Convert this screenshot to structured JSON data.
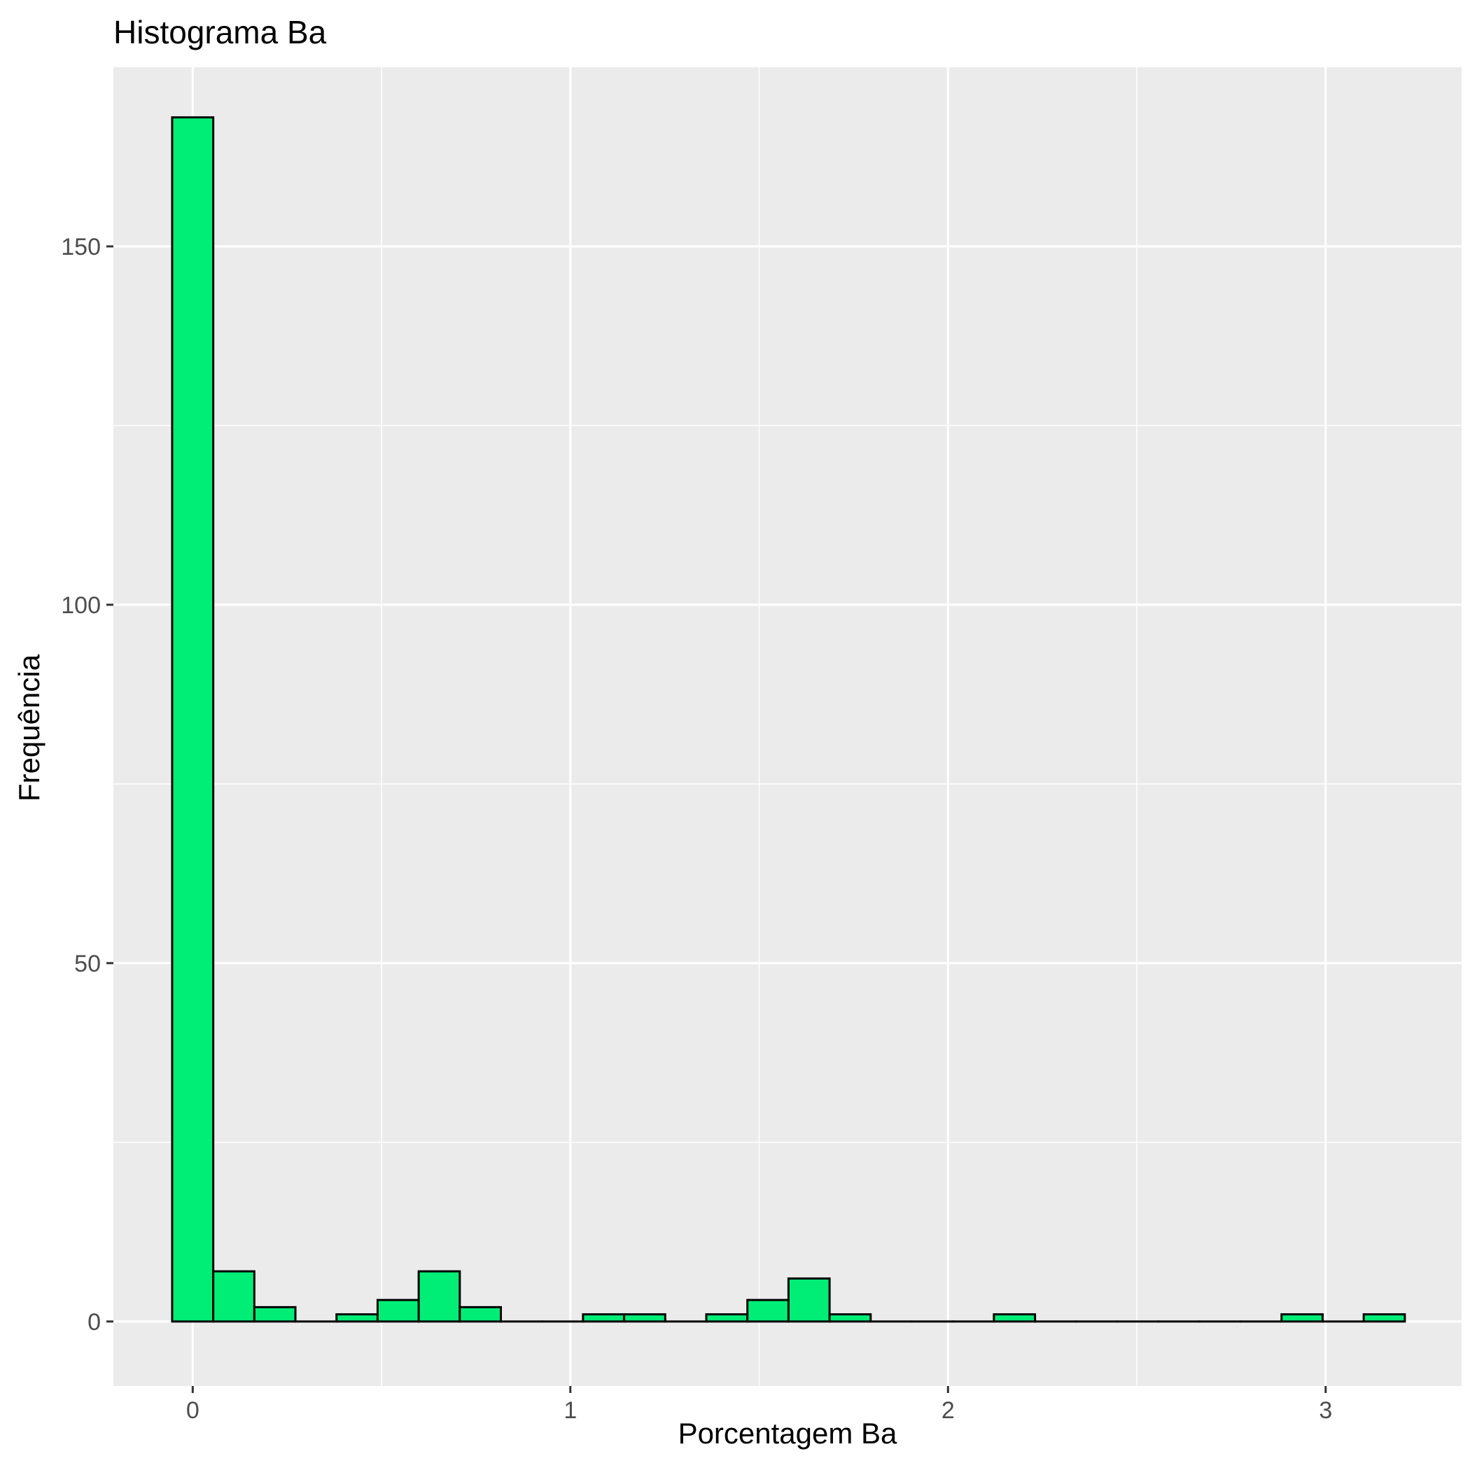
{
  "chart_data": {
    "type": "bar",
    "title": "Histograma  Ba",
    "xlabel": "Porcentagem Ba",
    "ylabel": "Frequência",
    "xlim": [
      -0.21,
      3.36
    ],
    "ylim": [
      -9,
      175
    ],
    "x_ticks": [
      0,
      1,
      2,
      3
    ],
    "x_tick_labels": [
      "0",
      "1",
      "2",
      "3"
    ],
    "y_ticks": [
      0,
      50,
      100,
      150
    ],
    "y_tick_labels": [
      "0",
      "50",
      "100",
      "150"
    ],
    "grid": true,
    "bin_width": 0.1088,
    "bins": [
      {
        "start": -0.0544,
        "end": 0.0544,
        "count": 168
      },
      {
        "start": 0.0544,
        "end": 0.1632,
        "count": 7
      },
      {
        "start": 0.1632,
        "end": 0.272,
        "count": 2
      },
      {
        "start": 0.272,
        "end": 0.3808,
        "count": 0
      },
      {
        "start": 0.3808,
        "end": 0.4896,
        "count": 1
      },
      {
        "start": 0.4896,
        "end": 0.5984,
        "count": 3
      },
      {
        "start": 0.5984,
        "end": 0.7072,
        "count": 7
      },
      {
        "start": 0.7072,
        "end": 0.816,
        "count": 2
      },
      {
        "start": 0.816,
        "end": 0.9248,
        "count": 0
      },
      {
        "start": 0.9248,
        "end": 1.0336,
        "count": 0
      },
      {
        "start": 1.0336,
        "end": 1.1424,
        "count": 1
      },
      {
        "start": 1.1424,
        "end": 1.2512,
        "count": 1
      },
      {
        "start": 1.2512,
        "end": 1.36,
        "count": 0
      },
      {
        "start": 1.36,
        "end": 1.4688,
        "count": 1
      },
      {
        "start": 1.4688,
        "end": 1.5776,
        "count": 3
      },
      {
        "start": 1.5776,
        "end": 1.6864,
        "count": 6
      },
      {
        "start": 1.6864,
        "end": 1.7952,
        "count": 1
      },
      {
        "start": 1.7952,
        "end": 1.904,
        "count": 0
      },
      {
        "start": 1.904,
        "end": 2.0128,
        "count": 0
      },
      {
        "start": 2.0128,
        "end": 2.1216,
        "count": 0
      },
      {
        "start": 2.1216,
        "end": 2.2304,
        "count": 1
      },
      {
        "start": 2.2304,
        "end": 2.3392,
        "count": 0
      },
      {
        "start": 2.3392,
        "end": 2.448,
        "count": 0
      },
      {
        "start": 2.448,
        "end": 2.5568,
        "count": 0
      },
      {
        "start": 2.5568,
        "end": 2.6656,
        "count": 0
      },
      {
        "start": 2.6656,
        "end": 2.7744,
        "count": 0
      },
      {
        "start": 2.7744,
        "end": 2.8832,
        "count": 0
      },
      {
        "start": 2.8832,
        "end": 2.992,
        "count": 1
      },
      {
        "start": 2.992,
        "end": 3.1008,
        "count": 0
      },
      {
        "start": 3.1008,
        "end": 3.2096,
        "count": 1
      }
    ],
    "colors": {
      "bar_fill": "#00EE76",
      "bar_stroke": "#000000",
      "panel_background": "#EBEBEB",
      "grid_major": "#FFFFFF",
      "tick_label": "#4D4D4D"
    }
  }
}
